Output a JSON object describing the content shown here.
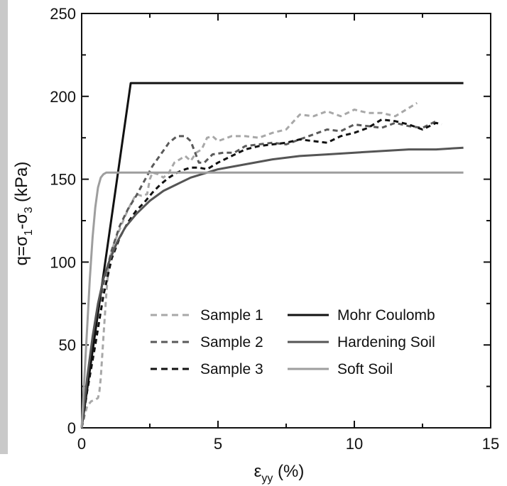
{
  "chart_data": {
    "type": "line",
    "title": "",
    "xlabel": {
      "main": "ε",
      "sub": "yy",
      "tail": " (%)"
    },
    "ylabel": {
      "parts": [
        {
          "t": "q=σ",
          "sub": false
        },
        {
          "t": "1",
          "sub": true
        },
        {
          "t": "-σ",
          "sub": false
        },
        {
          "t": "3",
          "sub": true
        },
        {
          "t": "  (kPa)",
          "sub": false
        }
      ]
    },
    "xlim": [
      0,
      15
    ],
    "ylim": [
      0,
      250
    ],
    "x_ticks": [
      0,
      5,
      10,
      15
    ],
    "x_tick_labels": [
      "0",
      "5",
      "10",
      "15"
    ],
    "y_ticks": [
      0,
      50,
      100,
      150,
      200,
      250
    ],
    "y_tick_labels": [
      "0",
      "50",
      "100",
      "150",
      "200",
      "250"
    ],
    "grid": false,
    "legend_position": "bottom-right",
    "series": [
      {
        "name": "Sample 1",
        "style": "dashed",
        "color": "#a8a8a8",
        "points": [
          [
            0,
            0
          ],
          [
            0.05,
            3
          ],
          [
            0.12,
            8
          ],
          [
            0.2,
            13
          ],
          [
            0.35,
            16
          ],
          [
            0.5,
            17
          ],
          [
            0.6,
            18
          ],
          [
            0.65,
            22
          ],
          [
            0.7,
            30
          ],
          [
            0.8,
            55
          ],
          [
            0.9,
            80
          ],
          [
            1.0,
            100
          ],
          [
            1.2,
            112
          ],
          [
            1.4,
            120
          ],
          [
            1.6,
            128
          ],
          [
            1.8,
            135
          ],
          [
            2.0,
            141
          ],
          [
            2.2,
            140
          ],
          [
            2.4,
            141
          ],
          [
            2.5,
            150
          ],
          [
            2.6,
            154
          ],
          [
            2.8,
            153
          ],
          [
            3.0,
            151
          ],
          [
            3.2,
            154
          ],
          [
            3.4,
            160
          ],
          [
            3.6,
            162
          ],
          [
            3.8,
            164
          ],
          [
            4.0,
            161
          ],
          [
            4.2,
            166
          ],
          [
            4.4,
            168
          ],
          [
            4.6,
            175
          ],
          [
            4.8,
            176
          ],
          [
            5.0,
            173
          ],
          [
            5.5,
            176
          ],
          [
            6.0,
            176
          ],
          [
            6.5,
            175
          ],
          [
            7.0,
            178
          ],
          [
            7.5,
            180
          ],
          [
            8.0,
            189
          ],
          [
            8.5,
            188
          ],
          [
            9.0,
            191
          ],
          [
            9.5,
            188
          ],
          [
            10.0,
            192
          ],
          [
            10.5,
            190
          ],
          [
            11.0,
            190
          ],
          [
            11.5,
            188
          ],
          [
            12.0,
            193
          ],
          [
            12.3,
            196
          ]
        ]
      },
      {
        "name": "Sample 2",
        "style": "dashed",
        "color": "#5a5a5a",
        "points": [
          [
            0,
            0
          ],
          [
            0.2,
            28
          ],
          [
            0.5,
            62
          ],
          [
            0.8,
            87
          ],
          [
            1.1,
            107
          ],
          [
            1.4,
            122
          ],
          [
            1.7,
            132
          ],
          [
            2.0,
            140
          ],
          [
            2.3,
            149
          ],
          [
            2.6,
            158
          ],
          [
            2.9,
            165
          ],
          [
            3.2,
            172
          ],
          [
            3.5,
            176
          ],
          [
            3.8,
            176
          ],
          [
            4.0,
            173
          ],
          [
            4.3,
            160
          ],
          [
            4.5,
            160
          ],
          [
            4.8,
            165
          ],
          [
            5.2,
            166
          ],
          [
            5.6,
            166
          ],
          [
            6.0,
            170
          ],
          [
            6.5,
            171
          ],
          [
            7.0,
            172
          ],
          [
            7.5,
            171
          ],
          [
            8.0,
            174
          ],
          [
            8.5,
            177
          ],
          [
            9.0,
            180
          ],
          [
            9.5,
            179
          ],
          [
            10.0,
            183
          ],
          [
            10.5,
            182
          ],
          [
            11.0,
            181
          ],
          [
            11.5,
            184
          ],
          [
            12.0,
            182
          ],
          [
            12.5,
            181
          ],
          [
            13.0,
            185
          ]
        ]
      },
      {
        "name": "Sample 3",
        "style": "dashed",
        "color": "#111111",
        "points": [
          [
            0,
            0
          ],
          [
            0.2,
            22
          ],
          [
            0.5,
            50
          ],
          [
            0.8,
            80
          ],
          [
            1.1,
            102
          ],
          [
            1.4,
            115
          ],
          [
            1.7,
            124
          ],
          [
            2.0,
            131
          ],
          [
            2.3,
            136
          ],
          [
            2.6,
            142
          ],
          [
            2.9,
            147
          ],
          [
            3.2,
            151
          ],
          [
            3.5,
            154
          ],
          [
            3.8,
            156
          ],
          [
            4.0,
            157
          ],
          [
            4.3,
            157
          ],
          [
            4.6,
            156
          ],
          [
            5.0,
            160
          ],
          [
            5.5,
            164
          ],
          [
            6.0,
            168
          ],
          [
            6.5,
            170
          ],
          [
            7.0,
            171
          ],
          [
            7.5,
            172
          ],
          [
            8.0,
            174
          ],
          [
            8.5,
            173
          ],
          [
            9.0,
            172
          ],
          [
            9.5,
            176
          ],
          [
            10.0,
            178
          ],
          [
            10.5,
            181
          ],
          [
            11.0,
            186
          ],
          [
            11.5,
            185
          ],
          [
            12.0,
            183
          ],
          [
            12.5,
            180
          ],
          [
            13.0,
            184
          ],
          [
            13.2,
            183
          ]
        ]
      },
      {
        "name": "Mohr Coulomb",
        "style": "solid",
        "color": "#111111",
        "points": [
          [
            0,
            0
          ],
          [
            1.8,
            208
          ],
          [
            14,
            208
          ]
        ]
      },
      {
        "name": "Hardening Soil",
        "style": "solid",
        "color": "#555555",
        "points": [
          [
            0,
            0
          ],
          [
            0.2,
            30
          ],
          [
            0.4,
            55
          ],
          [
            0.6,
            75
          ],
          [
            0.8,
            90
          ],
          [
            1.0,
            100
          ],
          [
            1.3,
            112
          ],
          [
            1.6,
            121
          ],
          [
            2.0,
            129
          ],
          [
            2.5,
            137
          ],
          [
            3.0,
            143
          ],
          [
            3.5,
            147
          ],
          [
            4.0,
            151
          ],
          [
            5.0,
            156
          ],
          [
            6.0,
            159
          ],
          [
            7.0,
            162
          ],
          [
            8.0,
            164
          ],
          [
            9.0,
            165
          ],
          [
            10.0,
            166
          ],
          [
            11.0,
            167
          ],
          [
            12.0,
            168
          ],
          [
            13.0,
            168
          ],
          [
            14.0,
            169
          ]
        ]
      },
      {
        "name": "Soft Soil",
        "style": "solid",
        "color": "#9e9e9e",
        "points": [
          [
            0,
            0
          ],
          [
            0.1,
            30
          ],
          [
            0.2,
            60
          ],
          [
            0.3,
            90
          ],
          [
            0.4,
            115
          ],
          [
            0.5,
            133
          ],
          [
            0.6,
            145
          ],
          [
            0.7,
            151
          ],
          [
            0.8,
            153
          ],
          [
            0.9,
            154
          ],
          [
            1.0,
            154
          ],
          [
            14,
            154
          ]
        ]
      }
    ]
  }
}
